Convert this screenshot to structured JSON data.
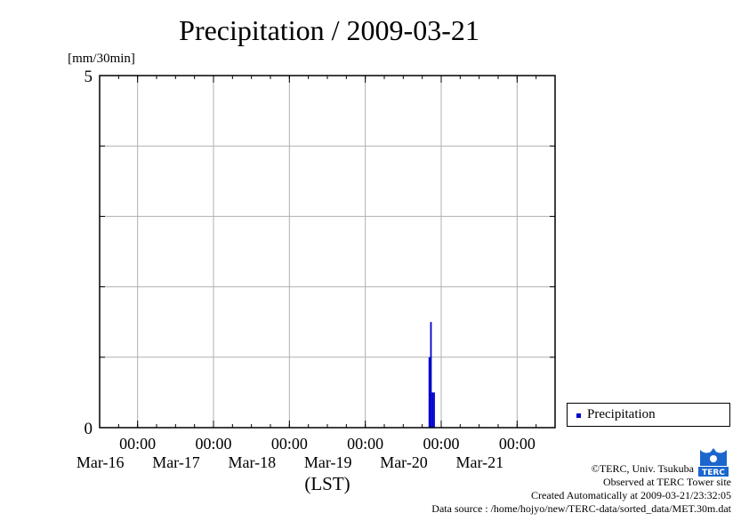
{
  "chart_data": {
    "type": "bar",
    "title": "Precipitation / 2009-03-21",
    "ylabel": "[mm/30min]",
    "xlabel": "(LST)",
    "ylim": [
      0,
      5
    ],
    "y_ticks_labeled": [
      "0",
      "5"
    ],
    "x_range": [
      "2009-03-15 12:00",
      "2009-03-21 12:00"
    ],
    "x_ticks": [
      {
        "time": "2009-03-16 00:00",
        "label_time": "00:00",
        "label_date": "Mar-16"
      },
      {
        "time": "2009-03-17 00:00",
        "label_time": "00:00",
        "label_date": "Mar-17"
      },
      {
        "time": "2009-03-18 00:00",
        "label_time": "00:00",
        "label_date": "Mar-18"
      },
      {
        "time": "2009-03-19 00:00",
        "label_time": "00:00",
        "label_date": "Mar-19"
      },
      {
        "time": "2009-03-20 00:00",
        "label_time": "00:00",
        "label_date": "Mar-20"
      },
      {
        "time": "2009-03-21 00:00",
        "label_time": "00:00",
        "label_date": "Mar-21"
      }
    ],
    "grid": true,
    "legend_position": "right",
    "series": [
      {
        "name": "Precipitation",
        "color": "#0000cc",
        "points": [
          {
            "t": "2009-03-19 20:00",
            "v": 1.0
          },
          {
            "t": "2009-03-19 20:30",
            "v": 1.5
          },
          {
            "t": "2009-03-19 21:00",
            "v": 0.5
          },
          {
            "t": "2009-03-19 21:30",
            "v": 0.5
          }
        ]
      }
    ]
  },
  "credits": {
    "copyright": "©TERC, Univ. Tsukuba",
    "observed": "Observed at TERC Tower site",
    "created": "Created Automatically at 2009-03-21/23:32:05",
    "source": "Data source : /home/hojyo/new/TERC-data/sorted_data/MET.30m.dat"
  },
  "logo": {
    "text": "TERC",
    "color": "#1a66cc"
  }
}
